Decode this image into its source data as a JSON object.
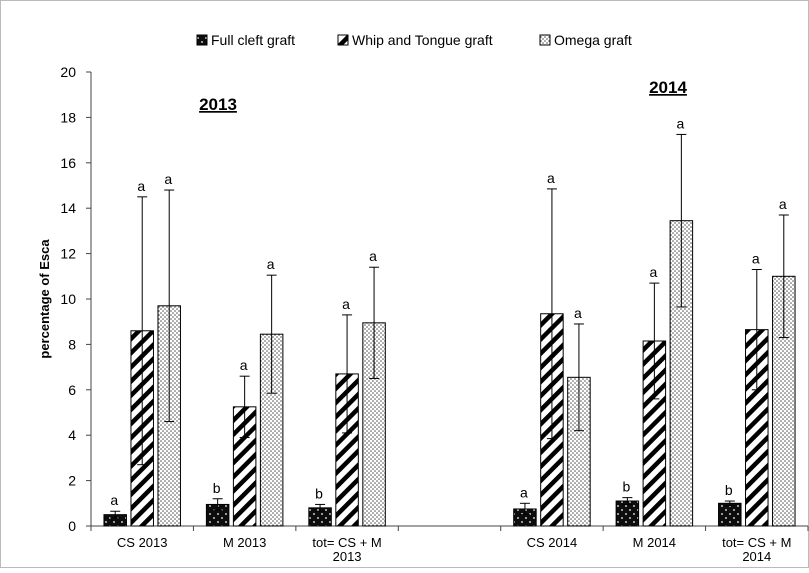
{
  "chart_data": {
    "type": "bar",
    "ylabel": "percentage of Esca",
    "ylim": [
      0,
      20
    ],
    "yticks": [
      "0",
      "2",
      "4",
      "6",
      "8",
      "10",
      "12",
      "14",
      "16",
      "18",
      "20"
    ],
    "year_labels": [
      "2013",
      "2014"
    ],
    "categories": [
      "CS 2013",
      "M 2013",
      "tot= CS + M 2013",
      "",
      "CS 2014",
      "M 2014",
      "tot= CS + M 2014"
    ],
    "category_lines": [
      [
        "CS 2013"
      ],
      [
        "M 2013"
      ],
      [
        "tot= CS + M",
        "2013"
      ],
      [],
      [
        "CS 2014"
      ],
      [
        "M 2014"
      ],
      [
        "tot= CS + M",
        "2014"
      ]
    ],
    "series": [
      {
        "name": "Full cleft graft",
        "pattern": "dots",
        "values": [
          0.5,
          0.95,
          0.8,
          null,
          0.75,
          1.1,
          1.0
        ],
        "errors": [
          0.15,
          0.25,
          0.15,
          null,
          0.25,
          0.15,
          0.1
        ],
        "letters": [
          "a",
          "b",
          "b",
          "",
          "a",
          "b",
          "b"
        ]
      },
      {
        "name": "Whip and Tongue graft",
        "pattern": "diagonal",
        "values": [
          8.6,
          5.25,
          6.7,
          null,
          9.35,
          8.15,
          8.65
        ],
        "errors": [
          5.9,
          1.35,
          2.6,
          null,
          5.5,
          2.55,
          2.65
        ],
        "letters": [
          "a",
          "a",
          "a",
          "",
          "a",
          "a",
          "a"
        ]
      },
      {
        "name": "Omega graft",
        "pattern": "stipple",
        "values": [
          9.7,
          8.45,
          8.95,
          null,
          6.55,
          13.45,
          11.0
        ],
        "errors": [
          5.1,
          2.6,
          2.45,
          null,
          2.35,
          3.8,
          2.7
        ],
        "letters": [
          "a",
          "a",
          "a",
          "",
          "a",
          "a",
          "a"
        ]
      }
    ],
    "colors": {
      "bar_fill": "#111111",
      "axis": "#444444",
      "background": "#ffffff"
    },
    "legend_position": "top",
    "grid": false
  }
}
